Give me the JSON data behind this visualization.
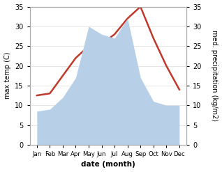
{
  "months": [
    "Jan",
    "Feb",
    "Mar",
    "Apr",
    "May",
    "Jun",
    "Jul",
    "Aug",
    "Sep",
    "Oct",
    "Nov",
    "Dec"
  ],
  "temperature": [
    12.5,
    13.0,
    17.5,
    22.0,
    25.0,
    25.5,
    28.0,
    32.0,
    35.0,
    27.0,
    20.0,
    14.0
  ],
  "precipitation": [
    8.5,
    9.0,
    12.0,
    17.0,
    30.0,
    28.0,
    27.0,
    32.0,
    17.0,
    11.0,
    10.0,
    10.0
  ],
  "temp_color": "#c0392b",
  "precip_color": "#b8cfe8",
  "background_color": "#ffffff",
  "ylim": [
    0,
    35
  ],
  "ylabel_left": "max temp (C)",
  "ylabel_right": "med. precipitation (kg/m2)",
  "xlabel": "date (month)",
  "temp_linewidth": 1.8,
  "yticks": [
    0,
    5,
    10,
    15,
    20,
    25,
    30,
    35
  ],
  "spine_color": "#aaaaaa",
  "grid_color": "#dddddd"
}
